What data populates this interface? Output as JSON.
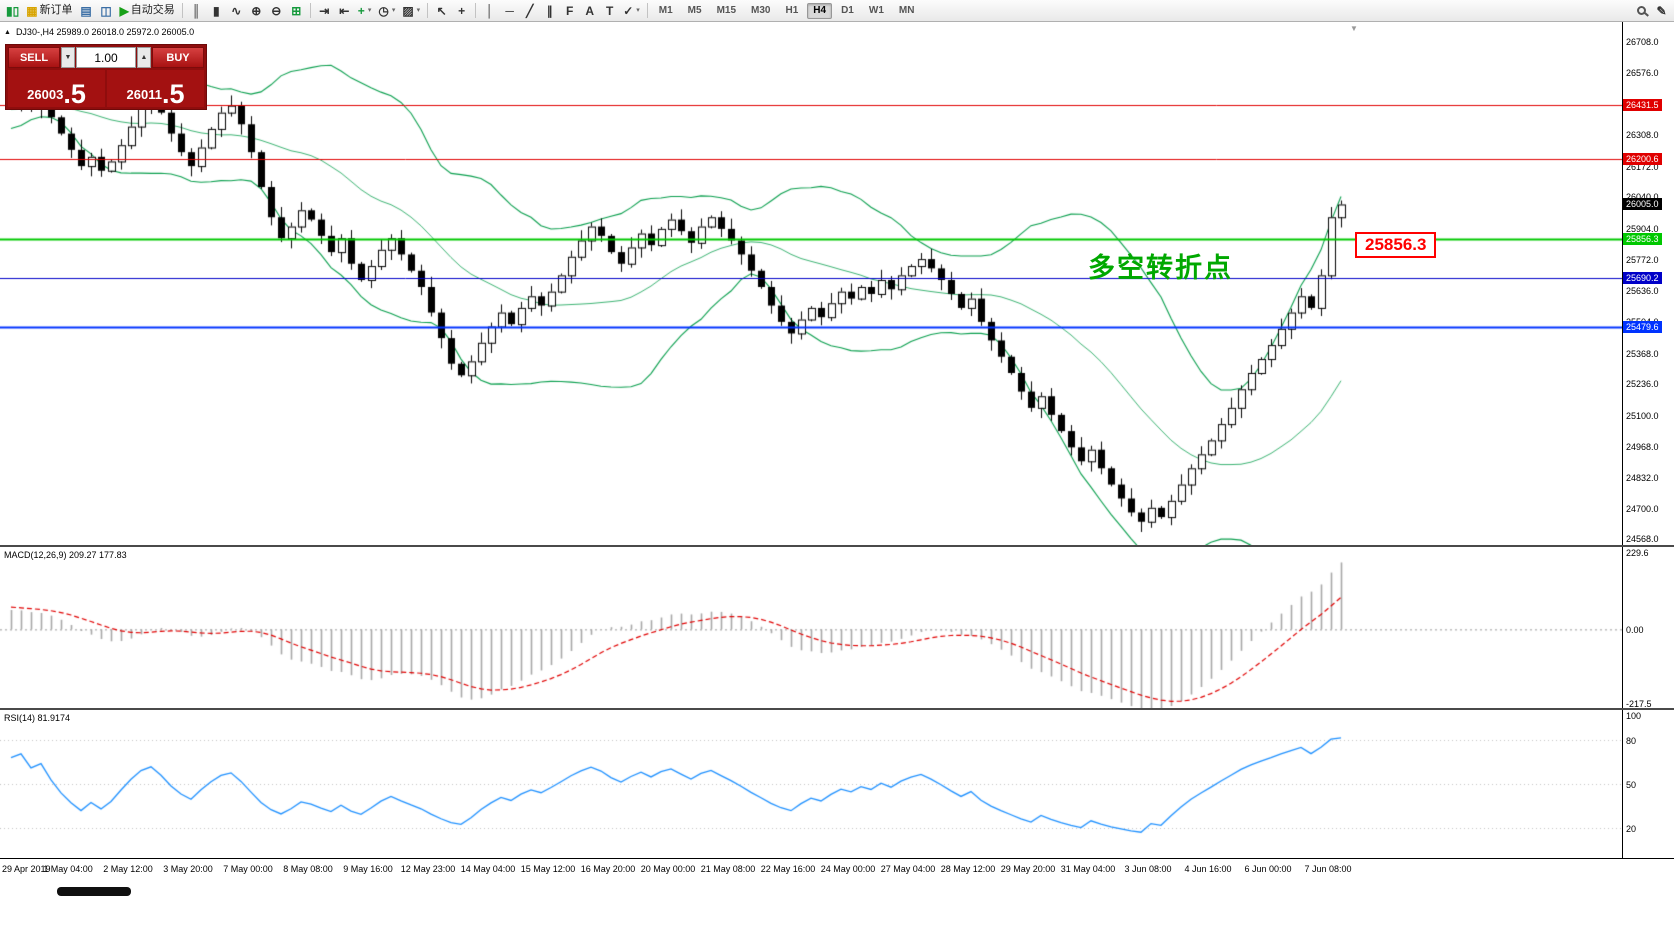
{
  "toolbar": {
    "items": [
      {
        "type": "icon",
        "name": "candlestick-chart-icon",
        "glyph": "▮▯",
        "color": "#159a3c"
      },
      {
        "type": "button",
        "name": "new-order-button",
        "glyph": "▦",
        "glyph_color": "#d8a400",
        "label": "新订单"
      },
      {
        "type": "icon",
        "name": "chart-profiles-icon",
        "glyph": "▤",
        "color": "#3a6ea5"
      },
      {
        "type": "icon",
        "name": "data-window-icon",
        "glyph": "◫",
        "color": "#3a6ea5"
      },
      {
        "type": "button",
        "name": "autotrading-button",
        "glyph": "▶",
        "glyph_color": "#18a018",
        "label": "自动交易"
      },
      {
        "type": "sep"
      },
      {
        "type": "icon",
        "name": "bar-chart-mode-icon",
        "glyph": "║",
        "color": "#333333"
      },
      {
        "type": "icon",
        "name": "candle-mode-icon",
        "glyph": "▮",
        "color": "#333333"
      },
      {
        "type": "icon",
        "name": "line-mode-icon",
        "glyph": "∿",
        "color": "#333333"
      },
      {
        "type": "icon",
        "name": "zoom-in-icon",
        "glyph": "⊕",
        "color": "#333333"
      },
      {
        "type": "icon",
        "name": "zoom-out-icon",
        "glyph": "⊖",
        "color": "#333333"
      },
      {
        "type": "icon",
        "name": "tile-windows-icon",
        "glyph": "⊞",
        "color": "#159a3c"
      },
      {
        "type": "sep"
      },
      {
        "type": "icon",
        "name": "auto-scroll-icon",
        "glyph": "⇥",
        "color": "#333333"
      },
      {
        "type": "icon",
        "name": "chart-shift-icon",
        "glyph": "⇤",
        "color": "#333333"
      },
      {
        "type": "dropdown",
        "name": "indicators-dropdown",
        "glyph": "+",
        "color": "#159a3c"
      },
      {
        "type": "dropdown",
        "name": "periods-dropdown",
        "glyph": "◷",
        "color": "#333333"
      },
      {
        "type": "dropdown",
        "name": "templates-dropdown",
        "glyph": "▨",
        "color": "#333333"
      },
      {
        "type": "sep"
      },
      {
        "type": "icon",
        "name": "cursor-icon",
        "glyph": "↖",
        "color": "#333333"
      },
      {
        "type": "icon",
        "name": "crosshair-icon",
        "glyph": "+",
        "color": "#333333"
      },
      {
        "type": "sep"
      },
      {
        "type": "icon",
        "name": "vertical-line-icon",
        "glyph": "│",
        "color": "#333333"
      },
      {
        "type": "icon",
        "name": "horizontal-line-icon",
        "glyph": "─",
        "color": "#333333"
      },
      {
        "type": "icon",
        "name": "trendline-icon",
        "glyph": "╱",
        "color": "#333333"
      },
      {
        "type": "icon",
        "name": "equidistant-channel-icon",
        "glyph": "∥",
        "color": "#333333"
      },
      {
        "type": "icon",
        "name": "fibonacci-icon",
        "glyph": "F",
        "color": "#333333"
      },
      {
        "type": "icon",
        "name": "text-icon",
        "glyph": "A",
        "color": "#333333"
      },
      {
        "type": "icon",
        "name": "text-label-icon",
        "glyph": "T",
        "color": "#333333"
      },
      {
        "type": "dropdown",
        "name": "arrows-dropdown",
        "glyph": "✓",
        "color": "#333333"
      },
      {
        "type": "sep"
      },
      {
        "type": "timeframes"
      },
      {
        "type": "spacer"
      },
      {
        "type": "magnifier",
        "name": "search-icon"
      },
      {
        "type": "icon",
        "name": "edit-icon",
        "glyph": "✎",
        "color": "#333333"
      }
    ],
    "timeframes": [
      "M1",
      "M5",
      "M15",
      "M30",
      "H1",
      "H4",
      "D1",
      "W1",
      "MN"
    ],
    "active_timeframe": "H4"
  },
  "trade_panel": {
    "sell_label": "SELL",
    "buy_label": "BUY",
    "volume": "1.00",
    "sell_price_main": "26003",
    "sell_price_frac": ".5",
    "buy_price_main": "26011",
    "buy_price_frac": ".5"
  },
  "chart": {
    "symbol_info": "DJ30-,H4  25989.0 26018.0 25972.0 26005.0",
    "collapse_icon": "▲",
    "shift_marker": "▼",
    "annotation": "多空转折点",
    "callout": "25856.3",
    "current_price_label": "26005.0",
    "axis_ticks": [
      "26708.0",
      "26576.0",
      "26444.0",
      "26308.0",
      "26172.0",
      "26040.0",
      "25904.0",
      "25772.0",
      "25636.0",
      "25504.0",
      "25368.0",
      "25236.0",
      "25100.0",
      "24968.0",
      "24832.0",
      "24700.0",
      "24568.0"
    ],
    "levels": [
      {
        "price": 26431.5,
        "label": "26431.5",
        "color": "#e00000",
        "width": 1
      },
      {
        "price": 26200.6,
        "label": "26200.6",
        "color": "#e00000",
        "width": 1
      },
      {
        "price": 25856.3,
        "label": "25856.3",
        "color": "#00c800",
        "width": 2
      },
      {
        "price": 25690.2,
        "label": "25690.2",
        "color": "#0000c8",
        "width": 1
      },
      {
        "price": 25479.6,
        "label": "25479.6",
        "color": "#0033ff",
        "width": 2
      }
    ]
  },
  "macd": {
    "label": "MACD(12,26,9) 209.27 177.83",
    "axis": [
      "229.6",
      "0.00",
      "-217.5"
    ],
    "axis_values": [
      229.6,
      0,
      -217.5
    ]
  },
  "rsi": {
    "label": "RSI(14) 81.9174",
    "axis": [
      "100",
      "80",
      "50",
      "20"
    ],
    "axis_values": [
      100,
      80,
      50,
      20
    ],
    "levels": [
      80,
      50,
      20
    ]
  },
  "chart_data": {
    "type": "candlestick",
    "symbol": "DJ30-",
    "timeframe": "H4",
    "current_bar": {
      "open": 25989.0,
      "high": 26018.0,
      "low": 25972.0,
      "close": 26005.0
    },
    "price_range": [
      24540,
      26790
    ],
    "levels": [
      26431.5,
      26200.6,
      25856.3,
      25690.2,
      25479.6
    ],
    "bollinger": {
      "period": 20,
      "deviation": 2
    },
    "macd_params": [
      12,
      26,
      9
    ],
    "macd_values": [
      209.27,
      177.83
    ],
    "rsi_period": 14,
    "rsi_value": 81.9174,
    "x_labels": [
      "29 Apr 2019",
      "1 May 04:00",
      "2 May 12:00",
      "3 May 20:00",
      "7 May 00:00",
      "8 May 08:00",
      "9 May 16:00",
      "12 May 23:00",
      "14 May 04:00",
      "15 May 12:00",
      "16 May 20:00",
      "20 May 00:00",
      "21 May 08:00",
      "22 May 16:00",
      "24 May 00:00",
      "27 May 04:00",
      "28 May 12:00",
      "29 May 20:00",
      "31 May 04:00",
      "3 Jun 08:00",
      "4 Jun 16:00",
      "6 Jun 00:00",
      "7 Jun 08:00"
    ],
    "pre_closes": [
      26100,
      26130,
      26110,
      26160,
      26190,
      26170,
      26220,
      26250,
      26230,
      26280,
      26300,
      26330,
      26310,
      26360,
      26390,
      26370,
      26400,
      26420,
      26400,
      26430,
      26450,
      26430,
      26460,
      26440,
      26420,
      26440,
      26450,
      26430,
      26450,
      26440
    ],
    "closes": [
      26440,
      26465,
      26420,
      26445,
      26380,
      26310,
      26240,
      26170,
      26210,
      26150,
      26190,
      26260,
      26340,
      26420,
      26460,
      26400,
      26310,
      26230,
      26170,
      26250,
      26330,
      26400,
      26430,
      26350,
      26230,
      26080,
      25950,
      25860,
      25910,
      25980,
      25940,
      25870,
      25800,
      25860,
      25750,
      25680,
      25740,
      25810,
      25860,
      25790,
      25720,
      25650,
      25540,
      25430,
      25320,
      25270,
      25330,
      25410,
      25480,
      25540,
      25490,
      25560,
      25610,
      25570,
      25630,
      25700,
      25780,
      25850,
      25910,
      25870,
      25800,
      25750,
      25820,
      25880,
      25830,
      25900,
      25940,
      25890,
      25840,
      25910,
      25950,
      25900,
      25850,
      25790,
      25720,
      25650,
      25570,
      25500,
      25450,
      25510,
      25560,
      25520,
      25580,
      25630,
      25600,
      25650,
      25620,
      25680,
      25640,
      25700,
      25740,
      25770,
      25730,
      25680,
      25620,
      25560,
      25600,
      25500,
      25420,
      25350,
      25280,
      25200,
      25130,
      25180,
      25100,
      25030,
      24960,
      24900,
      24950,
      24870,
      24800,
      24740,
      24680,
      24640,
      24700,
      24660,
      24730,
      24800,
      24870,
      24930,
      24990,
      25060,
      25130,
      25210,
      25280,
      25340,
      25400,
      25470,
      25540,
      25610,
      25560,
      25700,
      25950,
      26005
    ]
  }
}
